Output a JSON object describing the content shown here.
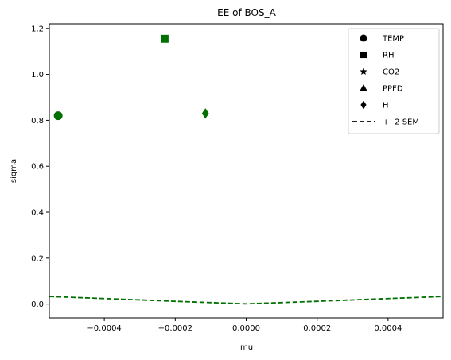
{
  "chart_data": {
    "type": "scatter",
    "title": "EE of BOS_A",
    "xlabel": "mu",
    "ylabel": "sigma",
    "xlim": [
      -0.000555,
      0.000555
    ],
    "ylim": [
      -0.06,
      1.22
    ],
    "xticks": [
      -0.0004,
      -0.0002,
      0.0,
      0.0002,
      0.0004
    ],
    "xtick_labels": [
      "−0.0004",
      "−0.0002",
      "0.0000",
      "0.0002",
      "0.0004"
    ],
    "yticks": [
      0.0,
      0.2,
      0.4,
      0.6,
      0.8,
      1.0,
      1.2
    ],
    "ytick_labels": [
      "0.0",
      "0.2",
      "0.4",
      "0.6",
      "0.8",
      "1.0",
      "1.2"
    ],
    "grid": false,
    "legend_position": "top-right",
    "marker_color": "#007000",
    "points": [
      {
        "name": "TEMP",
        "marker": "circle",
        "x": -0.00053,
        "y": 0.82
      },
      {
        "name": "RH",
        "marker": "square",
        "x": -0.00023,
        "y": 1.155
      },
      {
        "name": "CO2",
        "marker": "star",
        "x": null,
        "y": null
      },
      {
        "name": "PPFD",
        "marker": "triangle",
        "x": null,
        "y": null
      },
      {
        "name": "H",
        "marker": "diamond",
        "x": -0.000115,
        "y": 0.83
      }
    ],
    "sem_line": {
      "name": "+- 2 SEM",
      "style": "dashed",
      "color": "#007000",
      "x": [
        -0.000555,
        -0.0004,
        -0.0002,
        0.0,
        0.0002,
        0.0004,
        0.000555
      ],
      "y": [
        0.033,
        0.024,
        0.012,
        0.001,
        0.012,
        0.024,
        0.033
      ]
    },
    "legend": [
      "TEMP",
      "RH",
      "CO2",
      "PPFD",
      "H",
      "+- 2 SEM"
    ]
  }
}
